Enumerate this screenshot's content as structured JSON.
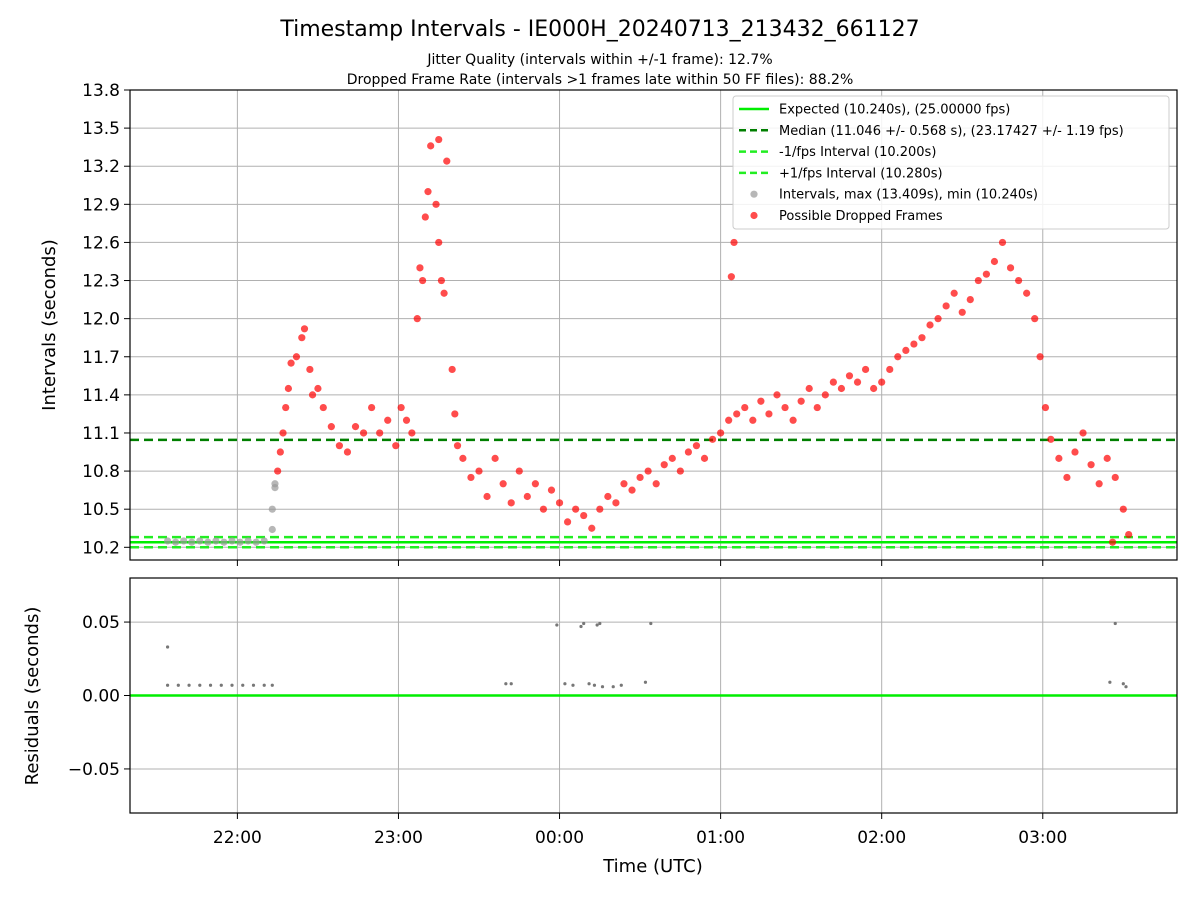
{
  "title": "Timestamp Intervals - IE000H_20240713_213432_661127",
  "subtitle_1": "Jitter Quality (intervals within +/-1 frame): 12.7%",
  "subtitle_2": "Dropped Frame Rate (intervals >1 frames late within 50 FF files): 88.2%",
  "chart_data": [
    {
      "type": "scatter",
      "ylabel": "Intervals (seconds)",
      "xlabel": "",
      "ylim": [
        10.1,
        13.8
      ],
      "y_ticks": [
        "10.2",
        "10.5",
        "10.8",
        "11.1",
        "11.4",
        "11.7",
        "12.0",
        "12.3",
        "12.6",
        "12.9",
        "13.2",
        "13.5",
        "13.8"
      ],
      "x_ticks": [
        "22:00",
        "23:00",
        "00:00",
        "01:00",
        "02:00",
        "03:00"
      ],
      "grid": true,
      "legend_position": "upper right",
      "lines": [
        {
          "name": "Expected (10.240s), (25.00000 fps)",
          "y": 10.24,
          "style": "solid",
          "color": "#00ee00"
        },
        {
          "name": "Median (11.046 +/- 0.568 s), (23.17427 +/- 1.19 fps)",
          "y": 11.046,
          "style": "dashed",
          "color": "#007f00"
        },
        {
          "name": "-1/fps Interval (10.200s)",
          "y": 10.2,
          "style": "dashed",
          "color": "#22ee22"
        },
        {
          "name": "+1/fps Interval (10.280s)",
          "y": 10.28,
          "style": "dashed",
          "color": "#22ee22"
        }
      ],
      "series": [
        {
          "name": "Intervals, max (13.409s), min (10.240s)",
          "color": "#999999",
          "points": [
            [
              "21:34",
              10.25
            ],
            [
              "21:37",
              10.24
            ],
            [
              "21:40",
              10.25
            ],
            [
              "21:43",
              10.24
            ],
            [
              "21:46",
              10.25
            ],
            [
              "21:49",
              10.24
            ],
            [
              "21:52",
              10.25
            ],
            [
              "21:55",
              10.24
            ],
            [
              "21:58",
              10.25
            ],
            [
              "22:01",
              10.24
            ],
            [
              "22:04",
              10.25
            ],
            [
              "22:07",
              10.24
            ],
            [
              "22:10",
              10.25
            ],
            [
              "22:13",
              10.34
            ],
            [
              "22:13",
              10.5
            ],
            [
              "22:14",
              10.67
            ],
            [
              "22:14",
              10.7
            ]
          ]
        },
        {
          "name": "Possible Dropped Frames",
          "color": "#ff0000",
          "points": [
            [
              "22:15",
              10.8
            ],
            [
              "22:16",
              10.95
            ],
            [
              "22:17",
              11.1
            ],
            [
              "22:18",
              11.3
            ],
            [
              "22:19",
              11.45
            ],
            [
              "22:20",
              11.65
            ],
            [
              "22:22",
              11.7
            ],
            [
              "22:24",
              11.85
            ],
            [
              "22:25",
              11.92
            ],
            [
              "22:27",
              11.6
            ],
            [
              "22:28",
              11.4
            ],
            [
              "22:30",
              11.45
            ],
            [
              "22:32",
              11.3
            ],
            [
              "22:35",
              11.15
            ],
            [
              "22:38",
              11.0
            ],
            [
              "22:41",
              10.95
            ],
            [
              "22:44",
              11.15
            ],
            [
              "22:47",
              11.1
            ],
            [
              "22:50",
              11.3
            ],
            [
              "22:53",
              11.1
            ],
            [
              "22:56",
              11.2
            ],
            [
              "22:59",
              11.0
            ],
            [
              "23:01",
              11.3
            ],
            [
              "23:03",
              11.2
            ],
            [
              "23:05",
              11.1
            ],
            [
              "23:07",
              12.0
            ],
            [
              "23:08",
              12.4
            ],
            [
              "23:09",
              12.3
            ],
            [
              "23:10",
              12.8
            ],
            [
              "23:11",
              13.0
            ],
            [
              "23:12",
              13.36
            ],
            [
              "23:14",
              12.9
            ],
            [
              "23:15",
              12.6
            ],
            [
              "23:16",
              12.3
            ],
            [
              "23:17",
              12.2
            ],
            [
              "23:18",
              13.24
            ],
            [
              "23:15",
              13.41
            ],
            [
              "23:20",
              11.6
            ],
            [
              "23:21",
              11.25
            ],
            [
              "23:22",
              11.0
            ],
            [
              "23:24",
              10.9
            ],
            [
              "23:27",
              10.75
            ],
            [
              "23:30",
              10.8
            ],
            [
              "23:33",
              10.6
            ],
            [
              "23:36",
              10.9
            ],
            [
              "23:39",
              10.7
            ],
            [
              "23:42",
              10.55
            ],
            [
              "23:45",
              10.8
            ],
            [
              "23:48",
              10.6
            ],
            [
              "23:51",
              10.7
            ],
            [
              "23:54",
              10.5
            ],
            [
              "23:57",
              10.65
            ],
            [
              "00:00",
              10.55
            ],
            [
              "00:03",
              10.4
            ],
            [
              "00:06",
              10.5
            ],
            [
              "00:09",
              10.45
            ],
            [
              "00:12",
              10.35
            ],
            [
              "00:15",
              10.5
            ],
            [
              "00:18",
              10.6
            ],
            [
              "00:21",
              10.55
            ],
            [
              "00:24",
              10.7
            ],
            [
              "00:27",
              10.65
            ],
            [
              "00:30",
              10.75
            ],
            [
              "00:33",
              10.8
            ],
            [
              "00:36",
              10.7
            ],
            [
              "00:39",
              10.85
            ],
            [
              "00:42",
              10.9
            ],
            [
              "00:45",
              10.8
            ],
            [
              "00:48",
              10.95
            ],
            [
              "00:51",
              11.0
            ],
            [
              "00:54",
              10.9
            ],
            [
              "00:57",
              11.05
            ],
            [
              "01:00",
              11.1
            ],
            [
              "01:03",
              11.2
            ],
            [
              "01:04",
              12.33
            ],
            [
              "01:05",
              12.6
            ],
            [
              "01:06",
              11.25
            ],
            [
              "01:09",
              11.3
            ],
            [
              "01:12",
              11.2
            ],
            [
              "01:15",
              11.35
            ],
            [
              "01:18",
              11.25
            ],
            [
              "01:21",
              11.4
            ],
            [
              "01:24",
              11.3
            ],
            [
              "01:27",
              11.2
            ],
            [
              "01:30",
              11.35
            ],
            [
              "01:33",
              11.45
            ],
            [
              "01:36",
              11.3
            ],
            [
              "01:39",
              11.4
            ],
            [
              "01:42",
              11.5
            ],
            [
              "01:45",
              11.45
            ],
            [
              "01:48",
              11.55
            ],
            [
              "01:51",
              11.5
            ],
            [
              "01:54",
              11.6
            ],
            [
              "01:57",
              11.45
            ],
            [
              "02:00",
              11.5
            ],
            [
              "02:03",
              11.6
            ],
            [
              "02:06",
              11.7
            ],
            [
              "02:09",
              11.75
            ],
            [
              "02:12",
              11.8
            ],
            [
              "02:15",
              11.85
            ],
            [
              "02:18",
              11.95
            ],
            [
              "02:21",
              12.0
            ],
            [
              "02:24",
              12.1
            ],
            [
              "02:27",
              12.2
            ],
            [
              "02:30",
              12.05
            ],
            [
              "02:33",
              12.15
            ],
            [
              "02:36",
              12.3
            ],
            [
              "02:39",
              12.35
            ],
            [
              "02:42",
              12.45
            ],
            [
              "02:45",
              12.6
            ],
            [
              "02:48",
              12.4
            ],
            [
              "02:51",
              12.3
            ],
            [
              "02:54",
              12.2
            ],
            [
              "02:57",
              12.0
            ],
            [
              "02:59",
              11.7
            ],
            [
              "03:01",
              11.3
            ],
            [
              "03:03",
              11.05
            ],
            [
              "03:06",
              10.9
            ],
            [
              "03:09",
              10.75
            ],
            [
              "03:12",
              10.95
            ],
            [
              "03:15",
              11.1
            ],
            [
              "03:18",
              10.85
            ],
            [
              "03:21",
              10.7
            ],
            [
              "03:24",
              10.9
            ],
            [
              "03:27",
              10.75
            ],
            [
              "03:30",
              10.5
            ],
            [
              "03:32",
              10.3
            ],
            [
              "03:26",
              10.24
            ]
          ]
        }
      ]
    },
    {
      "type": "scatter",
      "ylabel": "Residuals (seconds)",
      "xlabel": "Time (UTC)",
      "ylim": [
        -0.08,
        0.08
      ],
      "y_ticks": [
        "0.05",
        "0.00",
        "−0.05"
      ],
      "x_ticks": [
        "22:00",
        "23:00",
        "00:00",
        "01:00",
        "02:00",
        "03:00"
      ],
      "grid": true,
      "lines": [
        {
          "name": "",
          "y": 0.0,
          "style": "solid",
          "color": "#00ee00"
        }
      ],
      "series": [
        {
          "name": "",
          "color": "#777777",
          "points": [
            [
              "21:34",
              0.033
            ],
            [
              "21:34",
              0.007
            ],
            [
              "21:38",
              0.007
            ],
            [
              "21:42",
              0.007
            ],
            [
              "21:46",
              0.007
            ],
            [
              "21:50",
              0.007
            ],
            [
              "21:54",
              0.007
            ],
            [
              "21:58",
              0.007
            ],
            [
              "22:02",
              0.007
            ],
            [
              "22:06",
              0.007
            ],
            [
              "22:10",
              0.007
            ],
            [
              "22:13",
              0.007
            ],
            [
              "23:40",
              0.008
            ],
            [
              "23:42",
              0.008
            ],
            [
              "23:59",
              0.048
            ],
            [
              "00:02",
              0.008
            ],
            [
              "00:05",
              0.007
            ],
            [
              "00:08",
              0.047
            ],
            [
              "00:09",
              0.049
            ],
            [
              "00:14",
              0.048
            ],
            [
              "00:15",
              0.049
            ],
            [
              "00:11",
              0.008
            ],
            [
              "00:13",
              0.007
            ],
            [
              "00:16",
              0.006
            ],
            [
              "00:20",
              0.006
            ],
            [
              "00:23",
              0.007
            ],
            [
              "00:32",
              0.009
            ],
            [
              "00:34",
              0.049
            ],
            [
              "03:27",
              0.049
            ],
            [
              "03:25",
              0.009
            ],
            [
              "03:30",
              0.008
            ],
            [
              "03:31",
              0.006
            ]
          ]
        }
      ]
    }
  ],
  "legend": [
    {
      "label": "Expected (10.240s), (25.00000 fps)",
      "kind": "solid",
      "color": "#00ee00"
    },
    {
      "label": "Median (11.046 +/- 0.568 s), (23.17427 +/- 1.19 fps)",
      "kind": "dashed",
      "color": "#007f00"
    },
    {
      "label": "-1/fps Interval (10.200s)",
      "kind": "dashed",
      "color": "#22ee22"
    },
    {
      "label": "+1/fps Interval (10.280s)",
      "kind": "dashed",
      "color": "#22ee22"
    },
    {
      "label": "Intervals, max (13.409s), min (10.240s)",
      "kind": "dot",
      "color": "#999999"
    },
    {
      "label": "Possible Dropped Frames",
      "kind": "dot",
      "color": "#ff0000"
    }
  ]
}
